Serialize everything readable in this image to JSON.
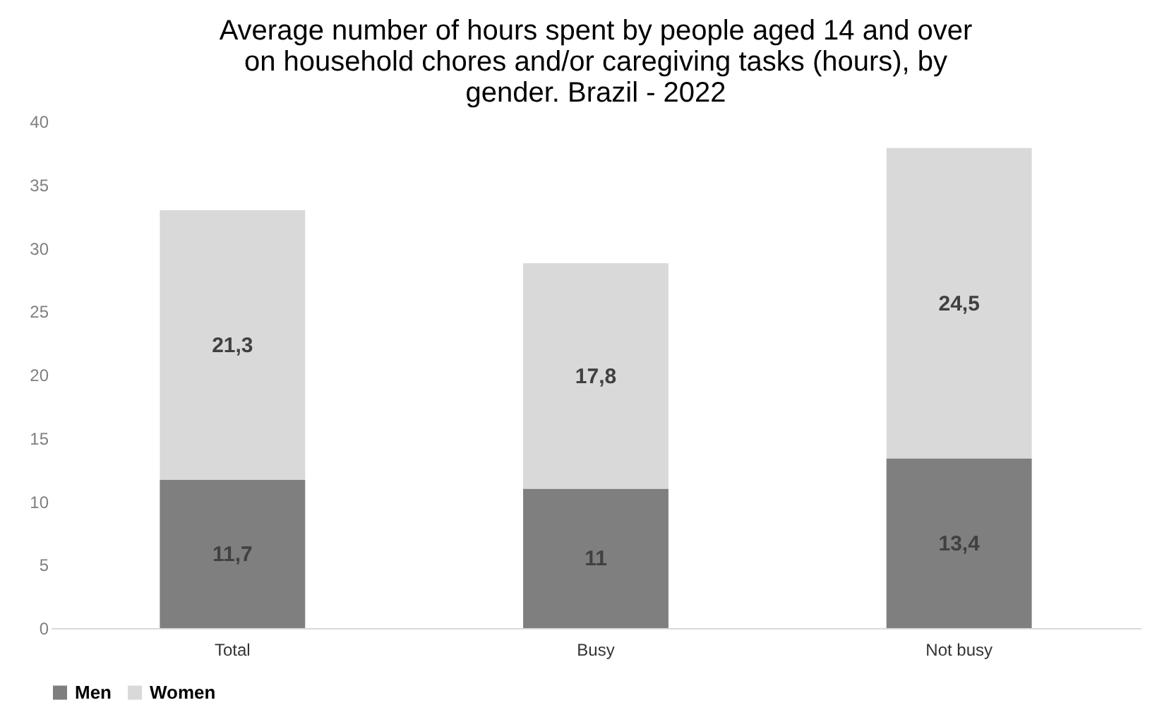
{
  "chart_data": {
    "type": "bar",
    "stacked": true,
    "title": "Average number of hours spent by people aged 14 and over on household chores and/or caregiving tasks (hours), by gender. Brazil - 2022",
    "categories": [
      "Total",
      "Busy",
      "Not busy"
    ],
    "series": [
      {
        "name": "Men",
        "color": "#7f7f7f",
        "values": [
          11.7,
          11,
          13.4
        ],
        "value_labels": [
          "11,7",
          "11",
          "13,4"
        ]
      },
      {
        "name": "Women",
        "color": "#d9d9d9",
        "values": [
          21.3,
          17.8,
          24.5
        ],
        "value_labels": [
          "21,3",
          "17,8",
          "24,5"
        ]
      }
    ],
    "ylim": [
      0,
      40
    ],
    "yticks": [
      0,
      5,
      10,
      15,
      20,
      25,
      30,
      35,
      40
    ],
    "grid": false,
    "legend": "bottom"
  }
}
